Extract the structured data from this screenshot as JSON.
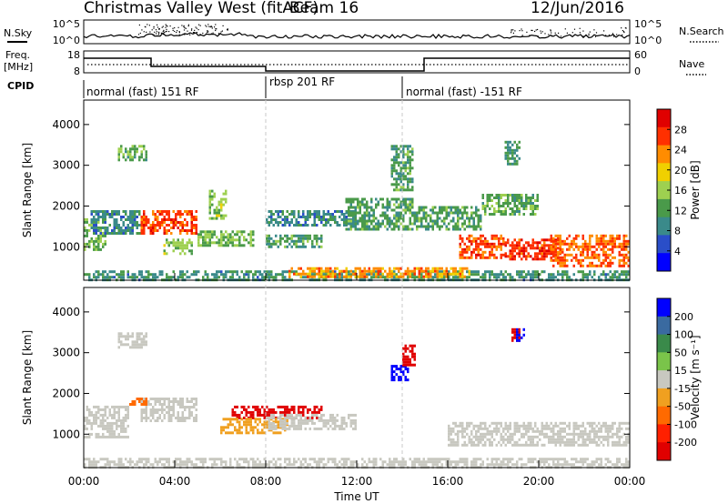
{
  "title": "Christmas Valley West (fitACF)",
  "beam": "Beam 16",
  "date": "12/Jun/2016",
  "header_panels": {
    "nsky": {
      "label": "N.Sky",
      "ticks": [
        "10^5",
        "10^0"
      ]
    },
    "nsearch": {
      "label": "N.Search",
      "ticks": [
        "10^5",
        "10^0"
      ]
    },
    "freq": {
      "label_line1": "Freq.",
      "label_line2": "[MHz]",
      "ticks": [
        "18",
        "8"
      ]
    },
    "nave": {
      "label": "Nave",
      "ticks": [
        "60",
        "0"
      ]
    },
    "cpid": {
      "label": "CPID"
    }
  },
  "programs": [
    {
      "name": "normal (fast) 151 RF",
      "start_hour": 0,
      "end_hour": 8
    },
    {
      "name": "rbsp 201 RF",
      "start_hour": 8,
      "end_hour": 14
    },
    {
      "name": "normal (fast) -151 RF",
      "start_hour": 14,
      "end_hour": 24
    }
  ],
  "x_axis": {
    "label": "Time UT",
    "ticks": [
      "00:00",
      "04:00",
      "08:00",
      "12:00",
      "16:00",
      "20:00",
      "00:00"
    ],
    "range_hours": [
      0,
      24
    ]
  },
  "colors": {
    "power": [
      "#0000ff",
      "#2a4ec8",
      "#3a8a8a",
      "#4a9a4a",
      "#9ed050",
      "#f0d000",
      "#ff8c00",
      "#ff3000",
      "#e00000"
    ],
    "velocity": [
      "#0000ff",
      "#3a6aa0",
      "#3a8a4a",
      "#7ac44a",
      "#c8c8c0",
      "#f0a020",
      "#ff6a00",
      "#ff2000",
      "#e00000"
    ]
  },
  "chart_data": [
    {
      "type": "heatmap",
      "quantity": "power",
      "ylabel": "Slant Range [km]",
      "ylim": [
        180,
        4600
      ],
      "yticks": [
        "1000",
        "2000",
        "3000",
        "4000"
      ],
      "colorbar": {
        "label": "Power [dB]",
        "ticks": [
          "4",
          "8",
          "12",
          "16",
          "20",
          "24",
          "28"
        ],
        "range": [
          0,
          32
        ]
      },
      "features": [
        {
          "t0": 0.0,
          "t1": 24.0,
          "r0": 200,
          "r1": 420,
          "value": 10
        },
        {
          "t0": 0.0,
          "t1": 1.0,
          "r0": 900,
          "r1": 1700,
          "value": 14
        },
        {
          "t0": 0.3,
          "t1": 2.5,
          "r0": 1300,
          "r1": 1900,
          "value": 9
        },
        {
          "t0": 2.5,
          "t1": 5.0,
          "r0": 1300,
          "r1": 1900,
          "value": 26
        },
        {
          "t0": 1.5,
          "t1": 2.8,
          "r0": 3150,
          "r1": 3500,
          "value": 13
        },
        {
          "t0": 3.5,
          "t1": 4.8,
          "r0": 850,
          "r1": 1200,
          "value": 15
        },
        {
          "t0": 5.5,
          "t1": 6.3,
          "r0": 1700,
          "r1": 2400,
          "value": 15
        },
        {
          "t0": 5.0,
          "t1": 7.5,
          "r0": 1000,
          "r1": 1400,
          "value": 14
        },
        {
          "t0": 8.0,
          "t1": 10.5,
          "r0": 1000,
          "r1": 1300,
          "value": 12
        },
        {
          "t0": 8.0,
          "t1": 12.0,
          "r0": 1500,
          "r1": 1900,
          "value": 9
        },
        {
          "t0": 11.5,
          "t1": 14.5,
          "r0": 1400,
          "r1": 2200,
          "value": 12
        },
        {
          "t0": 13.5,
          "t1": 14.5,
          "r0": 2400,
          "r1": 3500,
          "value": 12
        },
        {
          "t0": 14.5,
          "t1": 17.5,
          "r0": 1400,
          "r1": 2000,
          "value": 12
        },
        {
          "t0": 16.5,
          "t1": 18.5,
          "r0": 700,
          "r1": 1300,
          "value": 26
        },
        {
          "t0": 18.5,
          "t1": 21.0,
          "r0": 700,
          "r1": 1200,
          "value": 27
        },
        {
          "t0": 20.5,
          "t1": 24.0,
          "r0": 500,
          "r1": 1300,
          "value": 25
        },
        {
          "t0": 18.5,
          "t1": 19.2,
          "r0": 3000,
          "r1": 3600,
          "value": 11
        },
        {
          "t0": 17.5,
          "t1": 20.0,
          "r0": 1800,
          "r1": 2300,
          "value": 13
        },
        {
          "t0": 9.0,
          "t1": 17.0,
          "r0": 250,
          "r1": 500,
          "value": 23
        }
      ]
    },
    {
      "type": "heatmap",
      "quantity": "velocity",
      "ylabel": "Slant Range [km]",
      "ylim": [
        180,
        4600
      ],
      "yticks": [
        "1000",
        "2000",
        "3000",
        "4000"
      ],
      "colorbar": {
        "label": "Velocity [m s⁻¹]",
        "ticks": [
          "200",
          "100",
          "50",
          "15",
          "-15",
          "-50",
          "-100",
          "-200"
        ],
        "range": [
          -250,
          250
        ]
      },
      "features": [
        {
          "t0": 0.0,
          "t1": 24.0,
          "r0": 200,
          "r1": 420,
          "value": 20
        },
        {
          "t0": 0.0,
          "t1": 2.0,
          "r0": 900,
          "r1": 1700,
          "value": 0
        },
        {
          "t0": 2.5,
          "t1": 5.0,
          "r0": 1300,
          "r1": 1900,
          "value": 0
        },
        {
          "t0": 1.5,
          "t1": 2.8,
          "r0": 3150,
          "r1": 3500,
          "value": 0
        },
        {
          "t0": 2.0,
          "t1": 2.8,
          "r0": 1700,
          "r1": 1900,
          "value": -120
        },
        {
          "t0": 6.5,
          "t1": 10.5,
          "r0": 1400,
          "r1": 1700,
          "value": -220
        },
        {
          "t0": 6.0,
          "t1": 9.0,
          "r0": 1000,
          "r1": 1400,
          "value": -80
        },
        {
          "t0": 8.0,
          "t1": 12.0,
          "r0": 1100,
          "r1": 1500,
          "value": 0
        },
        {
          "t0": 13.5,
          "t1": 14.3,
          "r0": 2300,
          "r1": 2700,
          "value": 220
        },
        {
          "t0": 14.0,
          "t1": 14.6,
          "r0": 2700,
          "r1": 3200,
          "value": -220
        },
        {
          "t0": 16.0,
          "t1": 24.0,
          "r0": 700,
          "r1": 1300,
          "value": 0
        },
        {
          "t0": 18.8,
          "t1": 19.2,
          "r0": 3300,
          "r1": 3600,
          "value": -220
        },
        {
          "t0": 19.0,
          "t1": 19.4,
          "r0": 3300,
          "r1": 3600,
          "value": 220
        }
      ]
    }
  ]
}
